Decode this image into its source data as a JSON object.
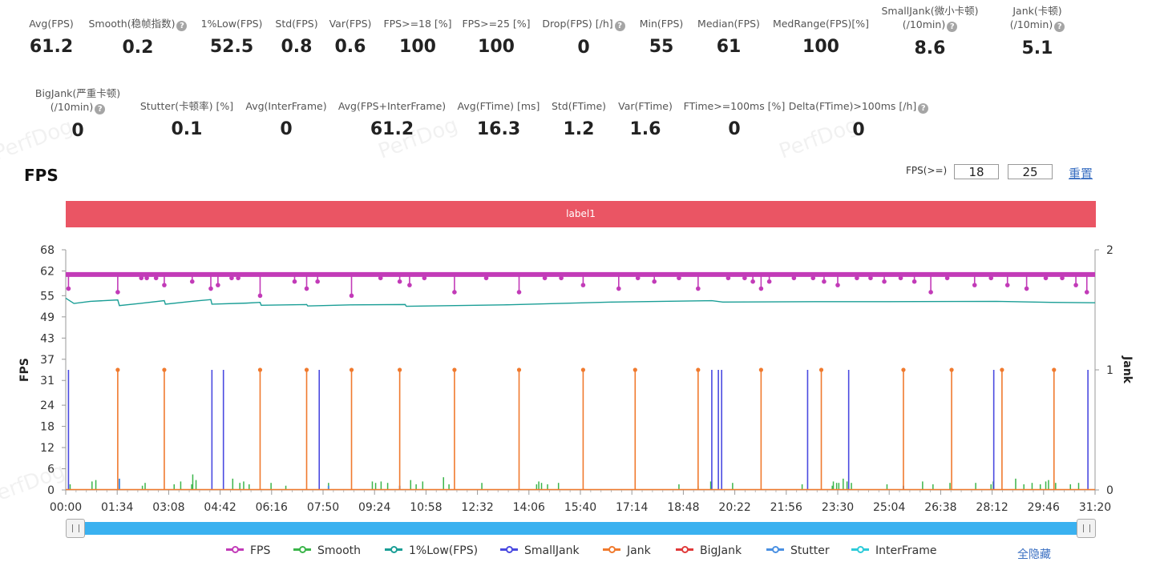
{
  "metrics_row1": [
    {
      "label": "Avg(FPS)",
      "value": "61.2",
      "help": false
    },
    {
      "label": "Smooth(稳帧指数)",
      "value": "0.2",
      "help": true
    },
    {
      "label": "1%Low(FPS)",
      "value": "52.5",
      "help": false
    },
    {
      "label": "Std(FPS)",
      "value": "0.8",
      "help": false
    },
    {
      "label": "Var(FPS)",
      "value": "0.6",
      "help": false
    },
    {
      "label": "FPS>=18 [%]",
      "value": "100",
      "help": false
    },
    {
      "label": "FPS>=25 [%]",
      "value": "100",
      "help": false
    },
    {
      "label": "Drop(FPS) [/h]",
      "value": "0",
      "help": true
    },
    {
      "label": "Min(FPS)",
      "value": "55",
      "help": false
    },
    {
      "label": "Median(FPS)",
      "value": "61",
      "help": false
    },
    {
      "label": "MedRange(FPS)[%]",
      "value": "100",
      "help": false
    },
    {
      "label": "SmallJank(微小卡顿)",
      "label2": "(/10min)",
      "value": "8.6",
      "help": true
    },
    {
      "label": "Jank(卡顿)",
      "label2": "(/10min)",
      "value": "5.1",
      "help": true
    }
  ],
  "metrics_row2": [
    {
      "label": "BigJank(严重卡顿)",
      "label2": "(/10min)",
      "value": "0",
      "help": true
    },
    {
      "label": "Stutter(卡顿率) [%]",
      "value": "0.1",
      "help": false
    },
    {
      "label": "Avg(InterFrame)",
      "value": "0",
      "help": false
    },
    {
      "label": "Avg(FPS+InterFrame)",
      "value": "61.2",
      "help": false
    },
    {
      "label": "Avg(FTime) [ms]",
      "value": "16.3",
      "help": false
    },
    {
      "label": "Std(FTime)",
      "value": "1.2",
      "help": false
    },
    {
      "label": "Var(FTime)",
      "value": "1.6",
      "help": false
    },
    {
      "label": "FTime>=100ms [%]",
      "value": "0",
      "help": false
    },
    {
      "label": "Delta(FTime)>100ms [/h]",
      "value": "0",
      "help": true
    }
  ],
  "watermark": "PerfDog",
  "chart_title": "FPS",
  "threshold": {
    "label": "FPS(>=)",
    "value1": "18",
    "value2": "25",
    "reset": "重置"
  },
  "label_bar": "label1",
  "hide_all": "全隐藏",
  "colors": {
    "fps": "#c23bb8",
    "smooth": "#3bb54a",
    "low1": "#1a9e96",
    "smalljank": "#4a4ae0",
    "jank": "#f07a2e",
    "bigjank": "#e03a3a",
    "stutter": "#4a90e2",
    "interframe": "#2ecbd9",
    "label_bar": "#ea5564",
    "slider": "#3ab1f0"
  },
  "chart_data": {
    "type": "line",
    "ylabel": "FPS",
    "y2label": "Jank",
    "y_ticks": [
      0,
      6,
      12,
      18,
      24,
      31,
      37,
      43,
      49,
      55,
      62,
      68
    ],
    "y_range": [
      0,
      68
    ],
    "y2_ticks": [
      0,
      1,
      2
    ],
    "y2_range": [
      0,
      2
    ],
    "x_range_seconds": [
      0,
      1880
    ],
    "x_tick_labels": [
      "00:00",
      "01:34",
      "03:08",
      "04:42",
      "06:16",
      "07:50",
      "09:24",
      "10:58",
      "12:32",
      "14:06",
      "15:40",
      "17:14",
      "18:48",
      "20:22",
      "21:56",
      "23:30",
      "25:04",
      "26:38",
      "28:12",
      "29:46",
      "31:20"
    ],
    "legend": [
      "FPS",
      "Smooth",
      "1%Low(FPS)",
      "SmallJank",
      "Jank",
      "BigJank",
      "Stutter",
      "InterFrame"
    ],
    "fps_baseline": 61,
    "fps_dips": [
      {
        "t": 5,
        "v": 57
      },
      {
        "t": 95,
        "v": 56
      },
      {
        "t": 138,
        "v": 60
      },
      {
        "t": 148,
        "v": 60
      },
      {
        "t": 165,
        "v": 60
      },
      {
        "t": 180,
        "v": 58
      },
      {
        "t": 231,
        "v": 59
      },
      {
        "t": 265,
        "v": 57
      },
      {
        "t": 278,
        "v": 58
      },
      {
        "t": 303,
        "v": 60
      },
      {
        "t": 315,
        "v": 60
      },
      {
        "t": 355,
        "v": 55
      },
      {
        "t": 418,
        "v": 59
      },
      {
        "t": 440,
        "v": 57
      },
      {
        "t": 460,
        "v": 59
      },
      {
        "t": 522,
        "v": 55
      },
      {
        "t": 575,
        "v": 60
      },
      {
        "t": 610,
        "v": 59
      },
      {
        "t": 628,
        "v": 58
      },
      {
        "t": 655,
        "v": 60
      },
      {
        "t": 710,
        "v": 56
      },
      {
        "t": 768,
        "v": 60
      },
      {
        "t": 828,
        "v": 56
      },
      {
        "t": 875,
        "v": 60
      },
      {
        "t": 905,
        "v": 60
      },
      {
        "t": 945,
        "v": 58
      },
      {
        "t": 1010,
        "v": 57
      },
      {
        "t": 1045,
        "v": 60
      },
      {
        "t": 1075,
        "v": 59
      },
      {
        "t": 1120,
        "v": 60
      },
      {
        "t": 1155,
        "v": 57
      },
      {
        "t": 1210,
        "v": 60
      },
      {
        "t": 1240,
        "v": 60
      },
      {
        "t": 1255,
        "v": 59
      },
      {
        "t": 1270,
        "v": 57
      },
      {
        "t": 1285,
        "v": 59
      },
      {
        "t": 1330,
        "v": 60
      },
      {
        "t": 1365,
        "v": 60
      },
      {
        "t": 1385,
        "v": 59
      },
      {
        "t": 1410,
        "v": 58
      },
      {
        "t": 1445,
        "v": 60
      },
      {
        "t": 1470,
        "v": 60
      },
      {
        "t": 1495,
        "v": 59
      },
      {
        "t": 1525,
        "v": 60
      },
      {
        "t": 1550,
        "v": 59
      },
      {
        "t": 1580,
        "v": 56
      },
      {
        "t": 1610,
        "v": 60
      },
      {
        "t": 1660,
        "v": 58
      },
      {
        "t": 1690,
        "v": 60
      },
      {
        "t": 1720,
        "v": 58
      },
      {
        "t": 1755,
        "v": 57
      },
      {
        "t": 1790,
        "v": 60
      },
      {
        "t": 1820,
        "v": 60
      },
      {
        "t": 1845,
        "v": 58
      },
      {
        "t": 1865,
        "v": 56
      }
    ],
    "low1_series": [
      [
        0,
        54.3
      ],
      [
        15,
        52.8
      ],
      [
        45,
        53.4
      ],
      [
        95,
        53.8
      ],
      [
        98,
        52.2
      ],
      [
        135,
        52.8
      ],
      [
        180,
        53.6
      ],
      [
        182,
        52.6
      ],
      [
        230,
        53.4
      ],
      [
        265,
        53.9
      ],
      [
        267,
        52.6
      ],
      [
        330,
        52.9
      ],
      [
        355,
        53.1
      ],
      [
        357,
        52.3
      ],
      [
        440,
        52.5
      ],
      [
        442,
        52.1
      ],
      [
        520,
        52.4
      ],
      [
        620,
        52.5
      ],
      [
        622,
        52.0
      ],
      [
        800,
        52.4
      ],
      [
        1000,
        53.2
      ],
      [
        1180,
        53.6
      ],
      [
        1200,
        53.2
      ],
      [
        1370,
        53.3
      ],
      [
        1500,
        53.3
      ],
      [
        1700,
        53.4
      ],
      [
        1800,
        53.1
      ],
      [
        1880,
        53.0
      ]
    ],
    "jank_times": [
      95,
      180,
      355,
      440,
      522,
      610,
      710,
      828,
      945,
      1040,
      1155,
      1270,
      1380,
      1530,
      1618,
      1710,
      1805
    ],
    "smalljank_times": [
      5,
      267,
      288,
      463,
      1180,
      1192,
      1198,
      1355,
      1430,
      1695,
      1867
    ],
    "smooth_events": [
      [
        8,
        0.4
      ],
      [
        48,
        0.6
      ],
      [
        55,
        0.7
      ],
      [
        140,
        0.3
      ],
      [
        145,
        0.5
      ],
      [
        198,
        0.4
      ],
      [
        210,
        0.6
      ],
      [
        230,
        0.4
      ],
      [
        232,
        1.1
      ],
      [
        238,
        0.7
      ],
      [
        305,
        0.8
      ],
      [
        318,
        0.5
      ],
      [
        325,
        0.6
      ],
      [
        335,
        0.4
      ],
      [
        375,
        0.5
      ],
      [
        402,
        0.3
      ],
      [
        480,
        0.5
      ],
      [
        560,
        0.6
      ],
      [
        566,
        0.5
      ],
      [
        576,
        0.6
      ],
      [
        588,
        0.5
      ],
      [
        630,
        0.7
      ],
      [
        640,
        0.4
      ],
      [
        652,
        0.6
      ],
      [
        690,
        0.9
      ],
      [
        700,
        0.4
      ],
      [
        760,
        0.5
      ],
      [
        860,
        0.4
      ],
      [
        864,
        0.6
      ],
      [
        869,
        0.5
      ],
      [
        880,
        0.4
      ],
      [
        900,
        0.5
      ],
      [
        1120,
        0.4
      ],
      [
        1155,
        0.3
      ],
      [
        1178,
        0.6
      ],
      [
        1218,
        0.5
      ],
      [
        1345,
        0.4
      ],
      [
        1400,
        0.3
      ],
      [
        1402,
        0.6
      ],
      [
        1408,
        0.5
      ],
      [
        1412,
        0.5
      ],
      [
        1420,
        0.8
      ],
      [
        1427,
        0.6
      ],
      [
        1435,
        0.5
      ],
      [
        1500,
        0.4
      ],
      [
        1565,
        0.6
      ],
      [
        1584,
        0.4
      ],
      [
        1615,
        0.5
      ],
      [
        1662,
        0.5
      ],
      [
        1690,
        0.4
      ],
      [
        1694,
        0.6
      ],
      [
        1735,
        0.8
      ],
      [
        1750,
        0.4
      ],
      [
        1765,
        0.5
      ],
      [
        1780,
        0.4
      ],
      [
        1790,
        0.6
      ],
      [
        1795,
        0.7
      ],
      [
        1808,
        0.5
      ],
      [
        1835,
        0.4
      ],
      [
        1850,
        0.5
      ]
    ],
    "stutter_events": [
      [
        98,
        0.8
      ],
      [
        480,
        0.3
      ],
      [
        610,
        0.3
      ],
      [
        1530,
        0.3
      ]
    ]
  }
}
